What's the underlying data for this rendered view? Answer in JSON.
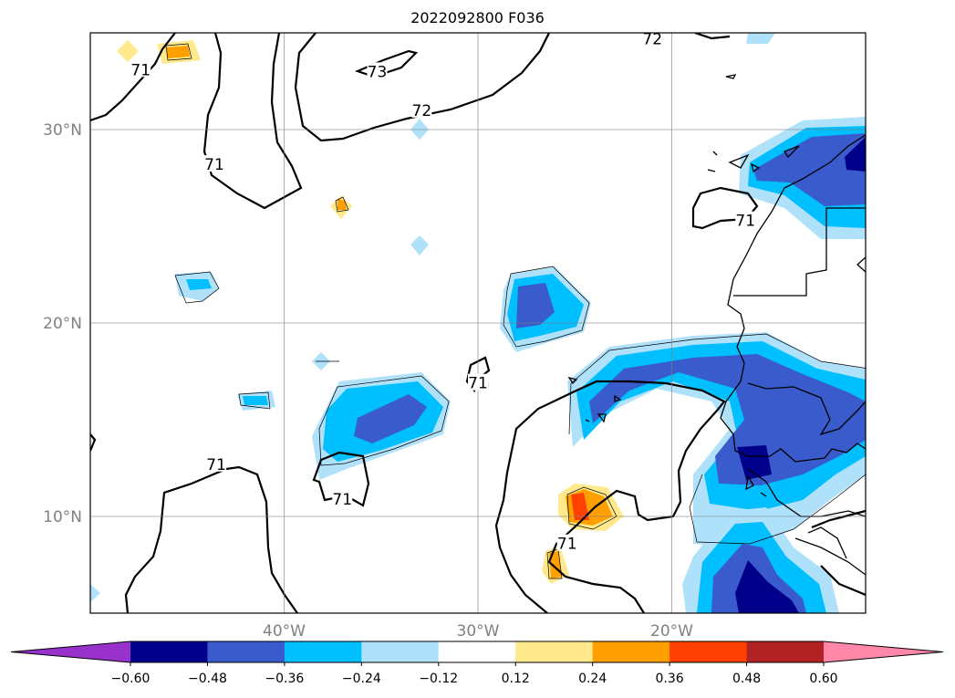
{
  "title": "2022092800 F036",
  "map": {
    "lon_range": [
      -50,
      -10
    ],
    "lat_range": [
      5,
      35
    ],
    "grid": true,
    "lon_ticks": [
      {
        "value": -40,
        "label": "40°W"
      },
      {
        "value": -30,
        "label": "30°W"
      },
      {
        "value": -20,
        "label": "20°W"
      }
    ],
    "lat_ticks": [
      {
        "value": 10,
        "label": "10°N"
      },
      {
        "value": 20,
        "label": "20°N"
      },
      {
        "value": 30,
        "label": "30°N"
      }
    ],
    "contour_labels": [
      {
        "text": "71",
        "lon": -47.4,
        "lat": 33.1
      },
      {
        "text": "73",
        "lon": -35.2,
        "lat": 33.0
      },
      {
        "text": "72",
        "lon": -32.9,
        "lat": 31.0
      },
      {
        "text": "72",
        "lon": -21.0,
        "lat": 34.7
      },
      {
        "text": "71",
        "lon": -43.6,
        "lat": 28.2
      },
      {
        "text": "71",
        "lon": -16.2,
        "lat": 25.3
      },
      {
        "text": "71",
        "lon": -30.0,
        "lat": 16.9
      },
      {
        "text": "71",
        "lon": -43.5,
        "lat": 12.7
      },
      {
        "text": "71",
        "lon": -37.0,
        "lat": 10.9
      },
      {
        "text": "71",
        "lon": -25.4,
        "lat": 8.6
      }
    ]
  },
  "colorbar": {
    "levels": [
      "−0.60",
      "−0.48",
      "−0.36",
      "−0.24",
      "−0.12",
      "0.12",
      "0.24",
      "0.36",
      "0.48",
      "0.60"
    ],
    "colors": [
      "#9932cc",
      "#00008b",
      "#3a5bcc",
      "#00bfff",
      "#afe1fa",
      "#ffffff",
      "#ffe98c",
      "#ffa000",
      "#ff4000",
      "#b22222",
      "#ff88aa"
    ],
    "extend": "both"
  }
}
